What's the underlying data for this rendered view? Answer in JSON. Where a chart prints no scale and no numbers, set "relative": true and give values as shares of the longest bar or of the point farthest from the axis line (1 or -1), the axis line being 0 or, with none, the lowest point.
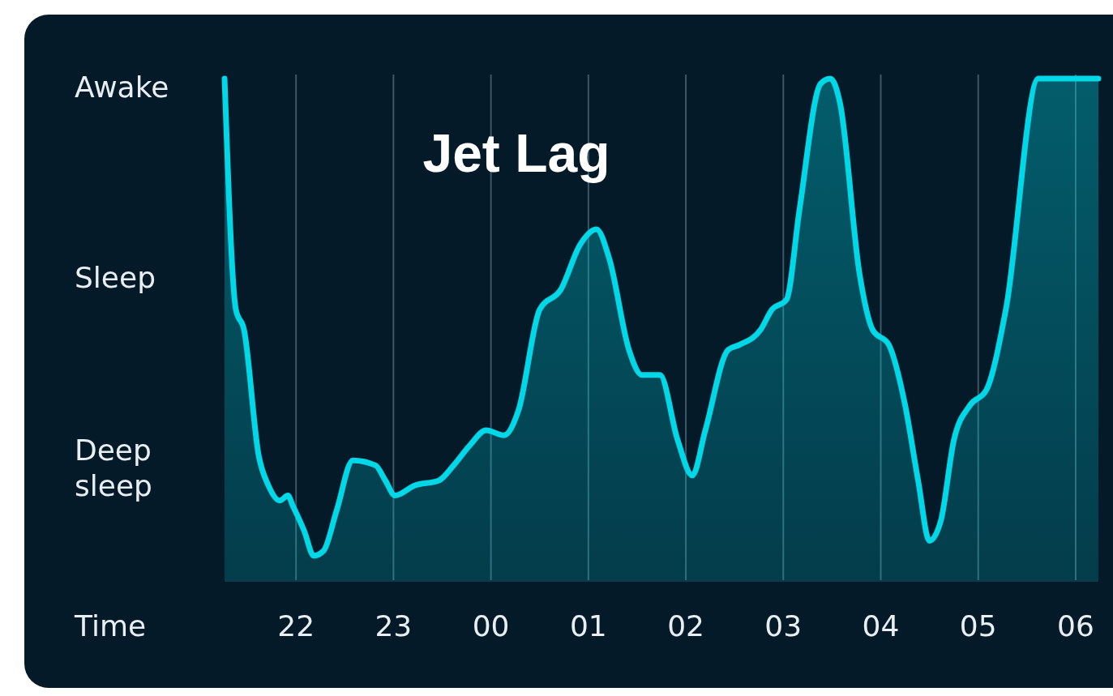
{
  "chart_data": {
    "type": "area",
    "title": "Jet Lag",
    "xlabel": "Time",
    "relative": true,
    "x": [
      "2000-01-01T21:16",
      "2000-01-01T21:23",
      "2000-01-01T21:28",
      "2000-01-01T21:37",
      "2000-01-01T21:43",
      "2000-01-01T21:50",
      "2000-01-01T21:55",
      "2000-01-01T21:58",
      "2000-01-01T22:05",
      "2000-01-01T22:11",
      "2000-01-01T22:17",
      "2000-01-01T22:25",
      "2000-01-01T22:35",
      "2000-01-01T22:49",
      "2000-01-01T22:55",
      "2000-01-01T23:01",
      "2000-01-01T23:13",
      "2000-01-01T23:28",
      "2000-01-01T23:37",
      "2000-01-01T23:47",
      "2000-01-01T23:57",
      "2000-01-02T00:08",
      "2000-01-02T00:17",
      "2000-01-02T00:30",
      "2000-01-02T00:43",
      "2000-01-02T00:55",
      "2000-01-02T01:05",
      "2000-01-02T01:13",
      "2000-01-02T01:25",
      "2000-01-02T01:33",
      "2000-01-02T01:44",
      "2000-01-02T01:55",
      "2000-01-02T02:04",
      "2000-01-02T02:12",
      "2000-01-02T02:26",
      "2000-01-02T02:33",
      "2000-01-02T02:46",
      "2000-01-02T02:53",
      "2000-01-02T03:02",
      "2000-01-02T03:10",
      "2000-01-02T03:23",
      "2000-01-02T03:29",
      "2000-01-02T03:35",
      "2000-01-02T03:47",
      "2000-01-02T03:55",
      "2000-01-02T04:05",
      "2000-01-02T04:15",
      "2000-01-02T04:23",
      "2000-01-02T04:30",
      "2000-01-02T04:37",
      "2000-01-02T04:45",
      "2000-01-02T04:55",
      "2000-01-02T05:05",
      "2000-01-02T05:17",
      "2000-01-02T05:37",
      "2000-01-02T05:47",
      "2000-01-02T06:02",
      "2000-01-02T06:14"
    ],
    "series": [
      {
        "color": "#00d8e8",
        "values": [
          1,
          0.54,
          0.5,
          0.25,
          0.19,
          0.16,
          0.17,
          0.15,
          0.1,
          0.05,
          0.06,
          0.14,
          0.24,
          0.23,
          0.2,
          0.17,
          0.19,
          0.2,
          0.23,
          0.27,
          0.3,
          0.29,
          0.34,
          0.54,
          0.58,
          0.67,
          0.7,
          0.64,
          0.46,
          0.41,
          0.41,
          0.28,
          0.21,
          0.3,
          0.46,
          0.47,
          0.5,
          0.54,
          0.56,
          0.74,
          0.99,
          1,
          0.95,
          0.61,
          0.5,
          0.47,
          0.35,
          0.2,
          0.08,
          0.12,
          0.28,
          0.35,
          0.38,
          0.54,
          1,
          1,
          1,
          1
        ]
      }
    ],
    "xlim": [
      "2000-01-01T21:16",
      "2000-01-02T06:14"
    ],
    "xticks": [
      {
        "value": "2000-01-01T22:00",
        "label": "22"
      },
      {
        "value": "2000-01-01T23:00",
        "label": "23"
      },
      {
        "value": "2000-01-02T00:00",
        "label": "00"
      },
      {
        "value": "2000-01-02T01:00",
        "label": "01"
      },
      {
        "value": "2000-01-02T02:00",
        "label": "02"
      },
      {
        "value": "2000-01-02T03:00",
        "label": "03"
      },
      {
        "value": "2000-01-02T04:00",
        "label": "04"
      },
      {
        "value": "2000-01-02T05:00",
        "label": "05"
      },
      {
        "value": "2000-01-02T06:00",
        "label": "06"
      }
    ],
    "annotations": [
      "Awake",
      "Sleep",
      "Deep sleep"
    ],
    "grid": "x"
  }
}
